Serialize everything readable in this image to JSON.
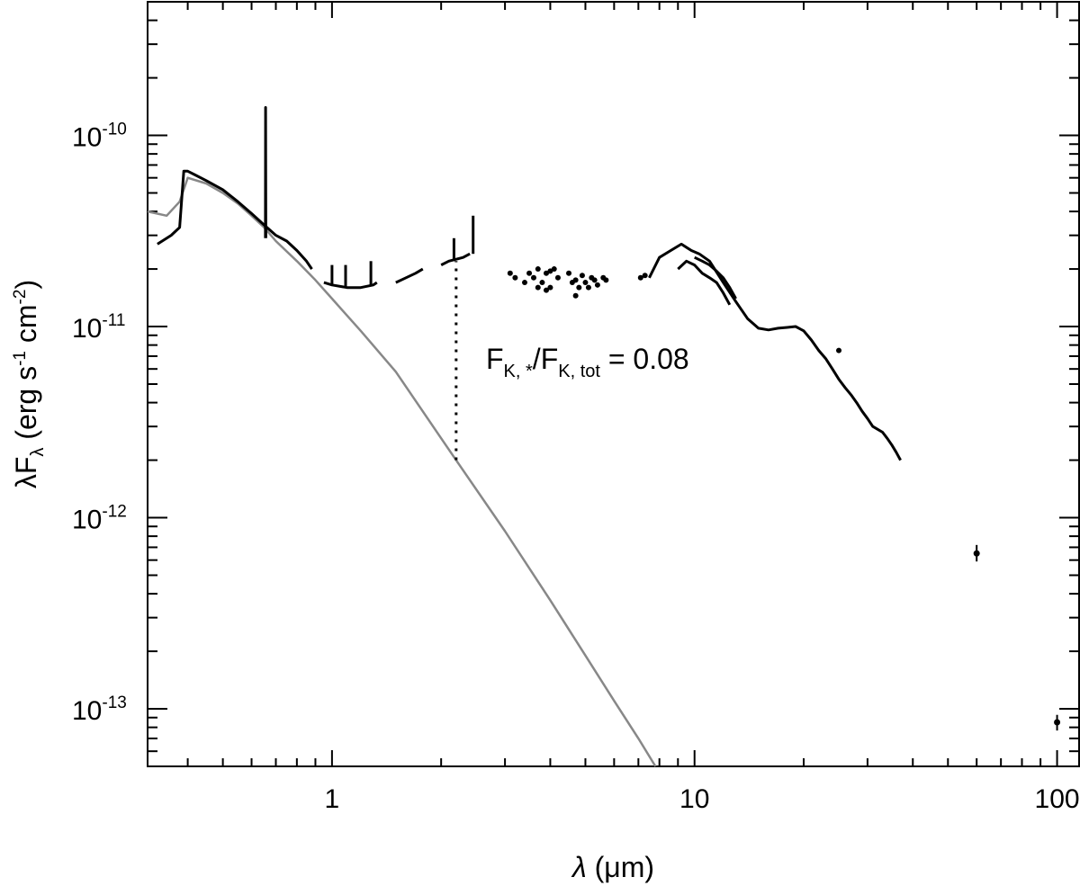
{
  "chart_data": {
    "type": "line",
    "xlabel": {
      "symbol": "λ",
      "unit": "(μm)"
    },
    "ylabel": {
      "prefix": "λF",
      "sub": "λ",
      "unit_open": " (erg s",
      "sup1": "-1",
      "mid": " cm",
      "sup2": "-2",
      "close": ")"
    },
    "x_scale": "log",
    "y_scale": "log",
    "xlim": [
      0.31,
      115
    ],
    "ylim": [
      5e-14,
      5e-10
    ],
    "x_ticks": [
      {
        "value": 1,
        "label": "1"
      },
      {
        "value": 10,
        "label": "10"
      },
      {
        "value": 100,
        "label": "100"
      }
    ],
    "y_ticks": [
      {
        "value": 1e-10,
        "base": "10",
        "exp": "-10"
      },
      {
        "value": 1e-11,
        "base": "10",
        "exp": "-11"
      },
      {
        "value": 1e-12,
        "base": "10",
        "exp": "-12"
      },
      {
        "value": 1e-13,
        "base": "10",
        "exp": "-13"
      }
    ],
    "annotation": {
      "F1": "F",
      "sub1": "K, *",
      "slash": "/F",
      "sub2": "K, tot",
      "tail": " = 0.08",
      "marker_x": 2.2,
      "marker_y_low": 2e-12,
      "marker_y_high": 2.2e-11
    },
    "series": [
      {
        "kind": "line",
        "color": "#888888",
        "points": [
          [
            0.31,
            4e-11
          ],
          [
            0.35,
            3.8e-11
          ],
          [
            0.38,
            4.5e-11
          ],
          [
            0.4,
            6e-11
          ],
          [
            0.45,
            5.6e-11
          ],
          [
            0.5,
            5e-11
          ],
          [
            0.55,
            4.4e-11
          ],
          [
            0.6,
            3.8e-11
          ],
          [
            0.65,
            3.3e-11
          ],
          [
            0.7,
            2.8e-11
          ],
          [
            0.8,
            2.2e-11
          ],
          [
            0.9,
            1.75e-11
          ],
          [
            1.0,
            1.4e-11
          ],
          [
            1.2,
            9.5e-12
          ],
          [
            1.5,
            5.8e-12
          ],
          [
            2.0,
            2.6e-12
          ],
          [
            2.2,
            2e-12
          ],
          [
            3.0,
            8.5e-13
          ],
          [
            4.0,
            3.7e-13
          ],
          [
            5.0,
            1.9e-13
          ],
          [
            6.0,
            1.1e-13
          ],
          [
            7.0,
            7e-14
          ],
          [
            7.8,
            5e-14
          ]
        ]
      },
      {
        "kind": "line",
        "color": "#000000",
        "points": [
          [
            0.33,
            2.7e-11
          ],
          [
            0.36,
            3e-11
          ],
          [
            0.38,
            3.3e-11
          ],
          [
            0.39,
            6.5e-11
          ],
          [
            0.4,
            6.5e-11
          ],
          [
            0.42,
            6.2e-11
          ],
          [
            0.45,
            5.8e-11
          ],
          [
            0.5,
            5.2e-11
          ],
          [
            0.55,
            4.5e-11
          ],
          [
            0.6,
            3.9e-11
          ],
          [
            0.65,
            3.4e-11
          ],
          [
            0.7,
            3e-11
          ],
          [
            0.75,
            2.8e-11
          ],
          [
            0.8,
            2.5e-11
          ],
          [
            0.85,
            2.2e-11
          ],
          [
            0.88,
            2e-11
          ]
        ]
      },
      {
        "kind": "line",
        "color": "#000000",
        "points": [
          [
            0.655,
            2.9e-11
          ],
          [
            0.656,
            1.4e-10
          ],
          [
            0.657,
            2.9e-11
          ]
        ]
      },
      {
        "kind": "line",
        "color": "#000000",
        "points": [
          [
            0.95,
            1.7e-11
          ],
          [
            1.0,
            1.65e-11
          ],
          [
            1.1,
            1.6e-11
          ],
          [
            1.2,
            1.6e-11
          ],
          [
            1.3,
            1.65e-11
          ],
          [
            1.33,
            1.7e-11
          ]
        ]
      },
      {
        "kind": "line",
        "color": "#000000",
        "points": [
          [
            1.0,
            1.65e-11
          ],
          [
            1.0,
            2.1e-11
          ]
        ]
      },
      {
        "kind": "line",
        "color": "#000000",
        "points": [
          [
            1.09,
            1.6e-11
          ],
          [
            1.09,
            2.1e-11
          ]
        ]
      },
      {
        "kind": "line",
        "color": "#000000",
        "points": [
          [
            1.28,
            1.65e-11
          ],
          [
            1.28,
            2.2e-11
          ]
        ]
      },
      {
        "kind": "line",
        "color": "#000000",
        "points": [
          [
            1.5,
            1.7e-11
          ],
          [
            1.6,
            1.8e-11
          ],
          [
            1.7,
            1.9e-11
          ],
          [
            1.78,
            2e-11
          ]
        ]
      },
      {
        "kind": "line",
        "color": "#000000",
        "points": [
          [
            2.0,
            2.1e-11
          ],
          [
            2.1,
            2.2e-11
          ],
          [
            2.2,
            2.25e-11
          ],
          [
            2.3,
            2.3e-11
          ],
          [
            2.4,
            2.4e-11
          ]
        ]
      },
      {
        "kind": "line",
        "color": "#000000",
        "points": [
          [
            2.17,
            2.2e-11
          ],
          [
            2.17,
            2.9e-11
          ]
        ]
      },
      {
        "kind": "line",
        "color": "#000000",
        "points": [
          [
            2.45,
            2.4e-11
          ],
          [
            2.45,
            3.8e-11
          ]
        ]
      },
      {
        "kind": "line",
        "color": "#000000",
        "points": [
          [
            7.5,
            1.8e-11
          ],
          [
            8.0,
            2.3e-11
          ],
          [
            8.6,
            2.5e-11
          ],
          [
            9.2,
            2.7e-11
          ],
          [
            9.8,
            2.5e-11
          ],
          [
            10.3,
            2.4e-11
          ],
          [
            11.0,
            2.2e-11
          ],
          [
            12.0,
            1.7e-11
          ],
          [
            13.0,
            1.35e-11
          ],
          [
            14.0,
            1.1e-11
          ],
          [
            15.0,
            9.8e-12
          ],
          [
            16.0,
            9.6e-12
          ],
          [
            17.0,
            9.8e-12
          ],
          [
            18.0,
            9.9e-12
          ],
          [
            19.0,
            1e-11
          ],
          [
            20.0,
            9.5e-12
          ],
          [
            21.0,
            8.5e-12
          ],
          [
            22.0,
            7.5e-12
          ],
          [
            23.0,
            6.8e-12
          ],
          [
            24.0,
            6e-12
          ],
          [
            25.0,
            5.3e-12
          ],
          [
            26.0,
            4.8e-12
          ],
          [
            27.0,
            4.4e-12
          ],
          [
            28.0,
            4e-12
          ],
          [
            29.0,
            3.6e-12
          ],
          [
            30.0,
            3.3e-12
          ],
          [
            31.0,
            3e-12
          ],
          [
            32.0,
            2.9e-12
          ],
          [
            33.0,
            2.8e-12
          ],
          [
            34.0,
            2.6e-12
          ],
          [
            35.0,
            2.4e-12
          ],
          [
            36.0,
            2.2e-12
          ],
          [
            37.0,
            2e-12
          ]
        ]
      },
      {
        "kind": "line",
        "color": "#000000",
        "points": [
          [
            9.0,
            2e-11
          ],
          [
            9.5,
            2.2e-11
          ],
          [
            10.0,
            2.1e-11
          ],
          [
            10.5,
            1.9e-11
          ],
          [
            11.0,
            1.8e-11
          ],
          [
            11.5,
            1.7e-11
          ],
          [
            12.0,
            1.5e-11
          ],
          [
            12.5,
            1.3e-11
          ]
        ]
      },
      {
        "kind": "line",
        "color": "#000000",
        "points": [
          [
            10.0,
            2.3e-11
          ],
          [
            10.5,
            2.2e-11
          ],
          [
            11.0,
            2.1e-11
          ],
          [
            11.5,
            1.95e-11
          ],
          [
            12.0,
            1.8e-11
          ],
          [
            12.5,
            1.6e-11
          ],
          [
            13.0,
            1.4e-11
          ]
        ]
      },
      {
        "kind": "scatter",
        "color": "#000000",
        "points": [
          [
            3.1,
            1.9e-11
          ],
          [
            3.2,
            1.8e-11
          ],
          [
            3.4,
            1.7e-11
          ],
          [
            3.5,
            1.9e-11
          ],
          [
            3.6,
            1.8e-11
          ],
          [
            3.7,
            2e-11
          ],
          [
            3.8,
            1.7e-11
          ],
          [
            3.9,
            1.9e-11
          ],
          [
            4.0,
            1.6e-11
          ],
          [
            4.1,
            2e-11
          ],
          [
            4.2,
            1.8e-11
          ],
          [
            3.7,
            1.6e-11
          ],
          [
            3.9,
            1.55e-11
          ],
          [
            4.0,
            1.95e-11
          ],
          [
            4.5,
            1.9e-11
          ],
          [
            4.6,
            1.7e-11
          ],
          [
            4.7,
            1.75e-11
          ],
          [
            4.8,
            1.6e-11
          ],
          [
            4.9,
            1.85e-11
          ],
          [
            5.0,
            1.7e-11
          ],
          [
            5.1,
            1.6e-11
          ],
          [
            5.2,
            1.8e-11
          ],
          [
            5.3,
            1.75e-11
          ],
          [
            5.4,
            1.65e-11
          ],
          [
            4.7,
            1.45e-11
          ],
          [
            5.6,
            1.8e-11
          ],
          [
            5.7,
            1.75e-11
          ],
          [
            7.1,
            1.8e-11
          ],
          [
            7.3,
            1.85e-11
          ],
          [
            25.0,
            7.5e-12
          ]
        ]
      },
      {
        "kind": "errorbar",
        "color": "#000000",
        "points": [
          [
            60,
            6.5e-13,
            5.9e-13,
            7.2e-13
          ],
          [
            100,
            8.5e-14,
            7.7e-14,
            9.3e-14
          ]
        ]
      }
    ]
  }
}
